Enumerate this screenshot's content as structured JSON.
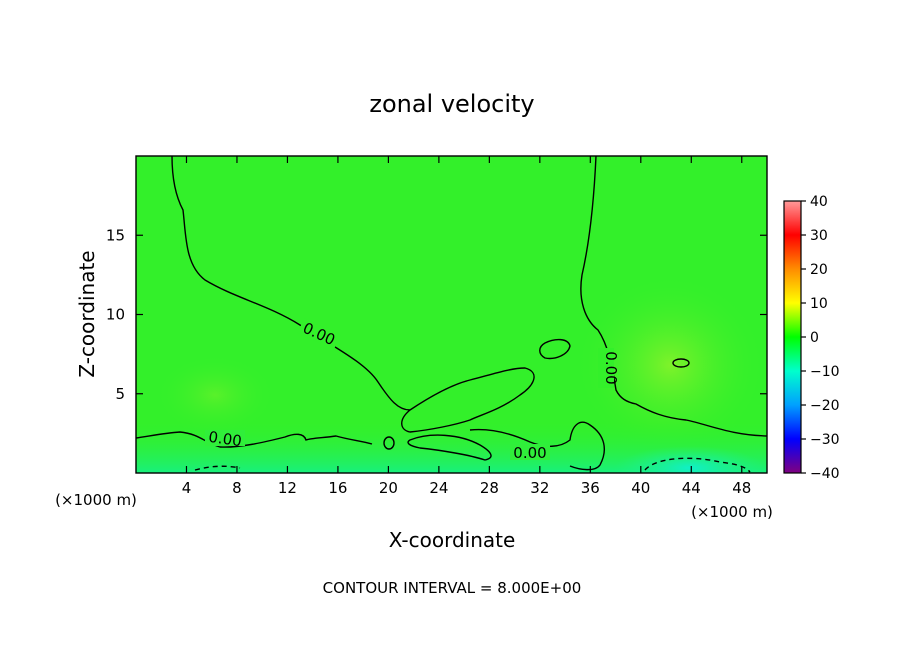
{
  "chart_data": {
    "type": "heatmap",
    "title": "zonal velocity",
    "xlabel": "X-coordinate",
    "ylabel": "Z-coordinate",
    "x_unit": "(×1000 m)",
    "x_unit_right": "(×1000 m)",
    "xlim": [
      0,
      50
    ],
    "ylim": [
      0,
      20
    ],
    "x_ticks": [
      4,
      8,
      12,
      16,
      20,
      24,
      28,
      32,
      36,
      40,
      44,
      48
    ],
    "y_ticks": [
      5,
      10,
      15
    ],
    "colorbar": {
      "ticks": [
        40,
        30,
        20,
        10,
        0,
        -10,
        -20,
        -30,
        -40
      ],
      "range": [
        -40,
        40
      ],
      "colors": [
        "#ff9a9a",
        "#ff0000",
        "#ff8c00",
        "#ffff00",
        "#00ff00",
        "#00ffcc",
        "#00a0ff",
        "#0000ff",
        "#800080"
      ]
    },
    "contour_labels": [
      "0.00",
      "0.00",
      "0.00",
      "0.00"
    ],
    "contour_interval_text": "CONTOUR INTERVAL = 8.000E+00",
    "field_colors": {
      "background": "#33f02a",
      "low": "#2ee64f",
      "near_surface": "#18f08a",
      "min_cell": "#10f0c0",
      "warm": "#7ef225"
    }
  }
}
